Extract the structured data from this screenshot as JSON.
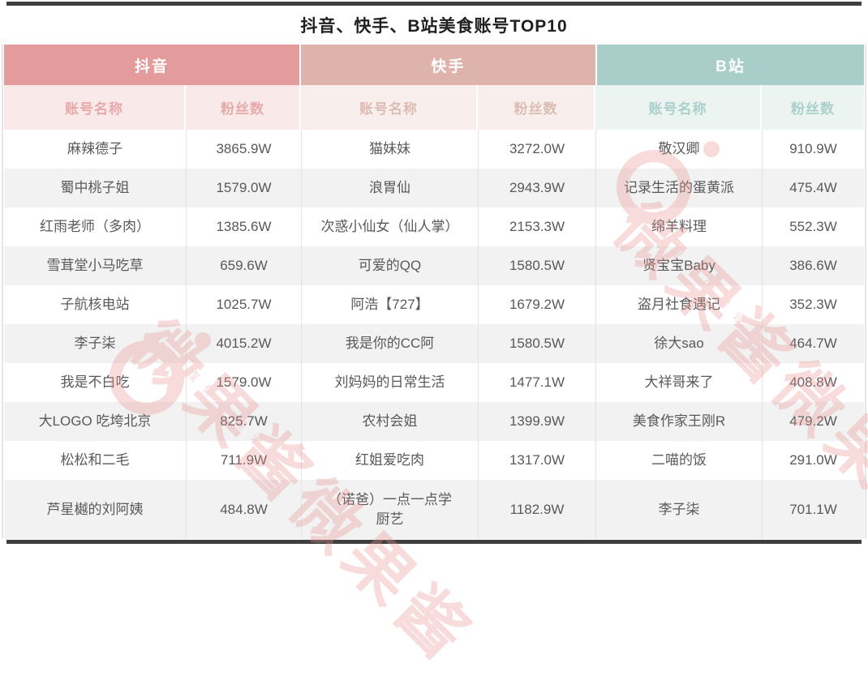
{
  "title": "抖音、快手、B站美食账号TOP10",
  "platforms": [
    {
      "name": "抖音",
      "color": "#e39b9b"
    },
    {
      "name": "快手",
      "color": "#ddb3ab"
    },
    {
      "name": "B站",
      "color": "#a9cdc9"
    }
  ],
  "column_headers": {
    "account": "账号名称",
    "fans": "粉丝数"
  },
  "rows": [
    {
      "cells": [
        "麻辣德子",
        "3865.9W",
        "猫妹妹",
        "3272.0W",
        "敬汉卿",
        "910.9W"
      ]
    },
    {
      "cells": [
        "蜀中桃子姐",
        "1579.0W",
        "浪胃仙",
        "2943.9W",
        "记录生活的蛋黄派",
        "475.4W"
      ]
    },
    {
      "cells": [
        "红雨老师（多肉）",
        "1385.6W",
        "次惑小仙女（仙人掌）",
        "2153.3W",
        "绵羊料理",
        "552.3W"
      ]
    },
    {
      "cells": [
        "雪茸堂小马吃草",
        "659.6W",
        "可爱的QQ",
        "1580.5W",
        "贤宝宝Baby",
        "386.6W"
      ]
    },
    {
      "cells": [
        "子航核电站",
        "1025.7W",
        "阿浩【727】",
        "1679.2W",
        "盗月社食遇记",
        "352.3W"
      ]
    },
    {
      "cells": [
        "李子柒",
        "4015.2W",
        "我是你的CC阿",
        "1580.5W",
        "徐大sao",
        "464.7W"
      ]
    },
    {
      "cells": [
        "我是不白吃",
        "1579.0W",
        "刘妈妈的日常生活",
        "1477.1W",
        "大祥哥来了",
        "408.8W"
      ]
    },
    {
      "cells": [
        "大LOGO 吃垮北京",
        "825.7W",
        "农村会姐",
        "1399.9W",
        "美食作家王刚R",
        "479.2W"
      ]
    },
    {
      "cells": [
        "松松和二毛",
        "711.9W",
        "红姐爱吃肉",
        "1317.0W",
        "二喵的饭",
        "291.0W"
      ]
    },
    {
      "cells": [
        "芦星樾的刘阿姨",
        "484.8W",
        "（诺爸）一点一点学厨艺",
        "1182.9W",
        "李子柒",
        "701.1W"
      ]
    }
  ],
  "watermark": {
    "logo_text": "微果酱",
    "logo_repeat": "微果酱微果酱",
    "tagline": "媒体的建设者",
    "color": "#ea9191"
  },
  "colors": {
    "accent_bar": "#3f3f3f",
    "douyin_header": "#e39b9b",
    "douyin_subheader_bg": "#f9e9e9",
    "douyin_subheader_text": "#e7a9a9",
    "kuaishou_header": "#ddb3ab",
    "kuaishou_subheader_bg": "#f8efec",
    "kuaishou_subheader_text": "#dcbcb3",
    "bilibili_header": "#a9cdc9",
    "bilibili_subheader_bg": "#ebf4f1",
    "bilibili_subheader_text": "#abd0ca",
    "row_alt": "#f2f2f2",
    "body_text": "#595959"
  },
  "chart_data": {
    "type": "table",
    "title": "抖音、快手、B站美食账号TOP10",
    "unit": "W (万粉丝)",
    "platforms": [
      "抖音",
      "快手",
      "B站"
    ],
    "columns": [
      "账号名称",
      "粉丝数"
    ],
    "series": [
      {
        "name": "抖音",
        "accounts": [
          [
            "麻辣德子",
            "3865.9W"
          ],
          [
            "蜀中桃子姐",
            "1579.0W"
          ],
          [
            "红雨老师（多肉）",
            "1385.6W"
          ],
          [
            "雪茸堂小马吃草",
            "659.6W"
          ],
          [
            "子航核电站",
            "1025.7W"
          ],
          [
            "李子柒",
            "4015.2W"
          ],
          [
            "我是不白吃",
            "1579.0W"
          ],
          [
            "大LOGO 吃垮北京",
            "825.7W"
          ],
          [
            "松松和二毛",
            "711.9W"
          ],
          [
            "芦星樾的刘阿姨",
            "484.8W"
          ]
        ]
      },
      {
        "name": "快手",
        "accounts": [
          [
            "猫妹妹",
            "3272.0W"
          ],
          [
            "浪胃仙",
            "2943.9W"
          ],
          [
            "次惑小仙女（仙人掌）",
            "2153.3W"
          ],
          [
            "可爱的QQ",
            "1580.5W"
          ],
          [
            "阿浩【727】",
            "1679.2W"
          ],
          [
            "我是你的CC阿",
            "1580.5W"
          ],
          [
            "刘妈妈的日常生活",
            "1477.1W"
          ],
          [
            "农村会姐",
            "1399.9W"
          ],
          [
            "红姐爱吃肉",
            "1317.0W"
          ],
          [
            "（诺爸）一点一点学厨艺",
            "1182.9W"
          ]
        ]
      },
      {
        "name": "B站",
        "accounts": [
          [
            "敬汉卿",
            "910.9W"
          ],
          [
            "记录生活的蛋黄派",
            "475.4W"
          ],
          [
            "绵羊料理",
            "552.3W"
          ],
          [
            "贤宝宝Baby",
            "386.6W"
          ],
          [
            "盗月社食遇记",
            "352.3W"
          ],
          [
            "徐大sao",
            "464.7W"
          ],
          [
            "大祥哥来了",
            "408.8W"
          ],
          [
            "美食作家王刚R",
            "479.2W"
          ],
          [
            "二喵的饭",
            "291.0W"
          ],
          [
            "李子柒",
            "701.1W"
          ]
        ]
      }
    ]
  }
}
